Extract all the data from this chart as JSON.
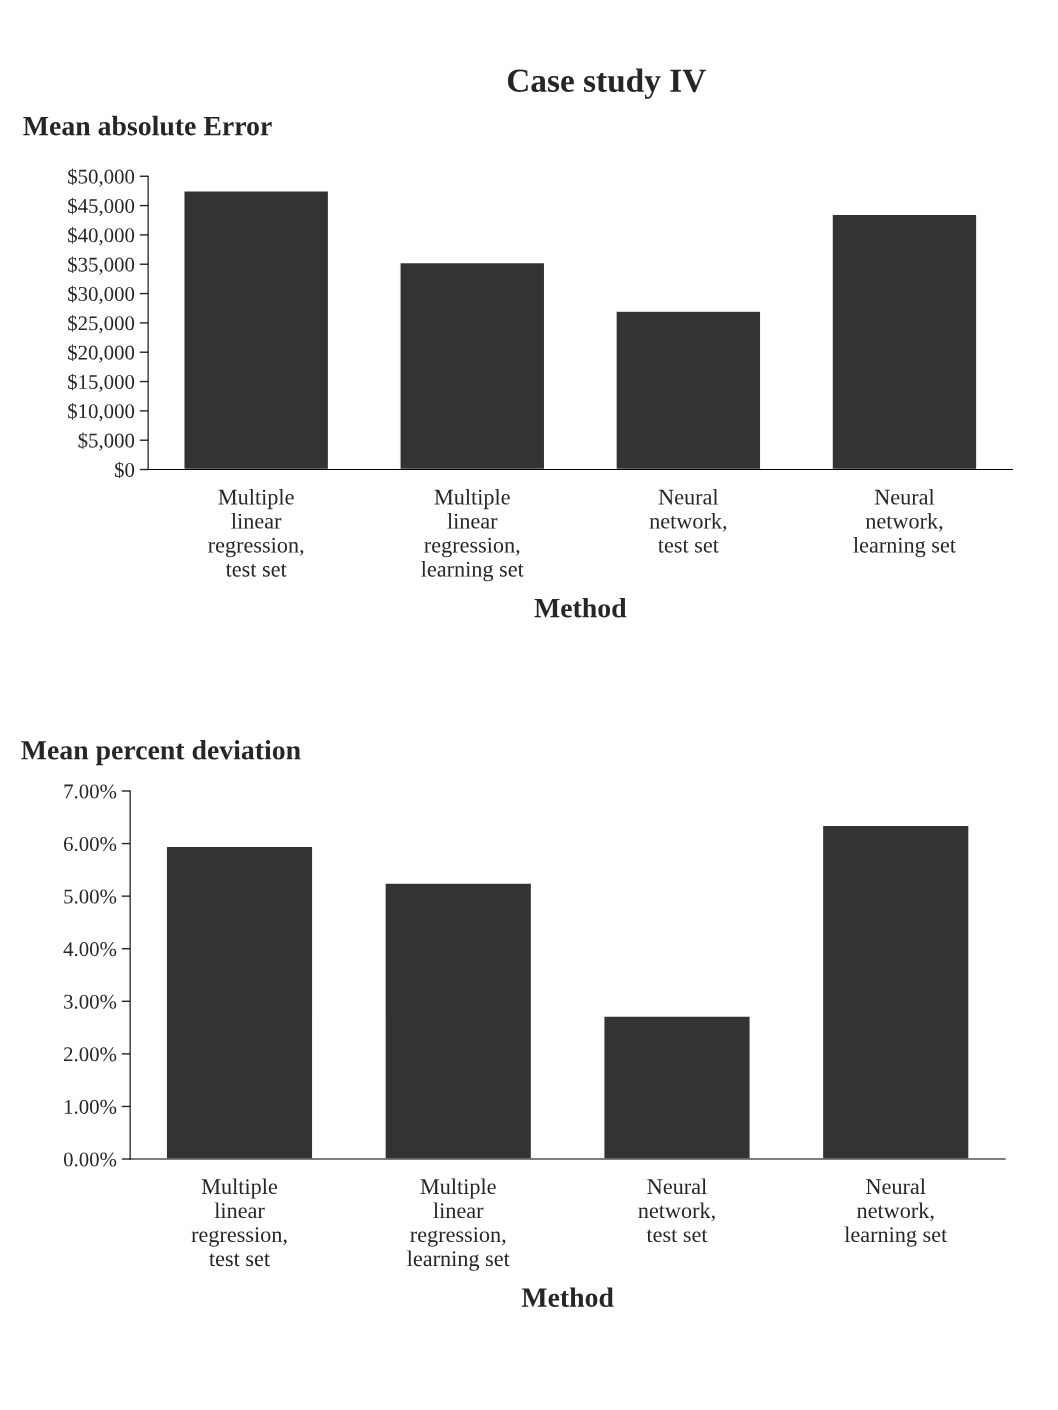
{
  "chart_data": [
    {
      "type": "bar",
      "title": "Case study IV",
      "ylabel": "Mean absolute Error",
      "xlabel": "Method",
      "categories": [
        "Multiple\nlinear\nregression,\ntest set",
        "Multiple\nlinear\nregression,\nlearning set",
        "Neural\nnetwork,\ntest set",
        "Neural\nnetwork,\nlearning set"
      ],
      "values": [
        47500,
        35300,
        27000,
        43500
      ],
      "color": "#333333",
      "ylim": [
        0,
        50000
      ],
      "yticks": [
        {
          "value": 0,
          "label": "$0"
        },
        {
          "value": 5000,
          "label": "$5,000"
        },
        {
          "value": 10000,
          "label": "$10,000"
        },
        {
          "value": 15000,
          "label": "$15,000"
        },
        {
          "value": 20000,
          "label": "$20,000"
        },
        {
          "value": 25000,
          "label": "$25,000"
        },
        {
          "value": 30000,
          "label": "$30,000"
        },
        {
          "value": 35000,
          "label": "$35,000"
        },
        {
          "value": 40000,
          "label": "$40,000"
        },
        {
          "value": 45000,
          "label": "$45,000"
        },
        {
          "value": 50000,
          "label": "$50,000"
        }
      ],
      "grid": false,
      "legend": false
    },
    {
      "type": "bar",
      "ylabel": "Mean percent deviation",
      "xlabel": "Method",
      "categories": [
        "Multiple\nlinear\nregression,\ntest set",
        "Multiple\nlinear\nregression,\nlearning set",
        "Neural\nnetwork,\ntest set",
        "Neural\nnetwork,\nlearning set"
      ],
      "values": [
        5.95,
        5.25,
        2.72,
        6.35
      ],
      "color": "#333333",
      "ylim": [
        0,
        7
      ],
      "yticks": [
        {
          "value": 0,
          "label": "0.00%"
        },
        {
          "value": 1,
          "label": "1.00%"
        },
        {
          "value": 2,
          "label": "2.00%"
        },
        {
          "value": 3,
          "label": "3.00%"
        },
        {
          "value": 4,
          "label": "4.00%"
        },
        {
          "value": 5,
          "label": "5.00%"
        },
        {
          "value": 6,
          "label": "6.00%"
        },
        {
          "value": 7,
          "label": "7.00%"
        }
      ],
      "grid": false,
      "legend": false
    }
  ]
}
